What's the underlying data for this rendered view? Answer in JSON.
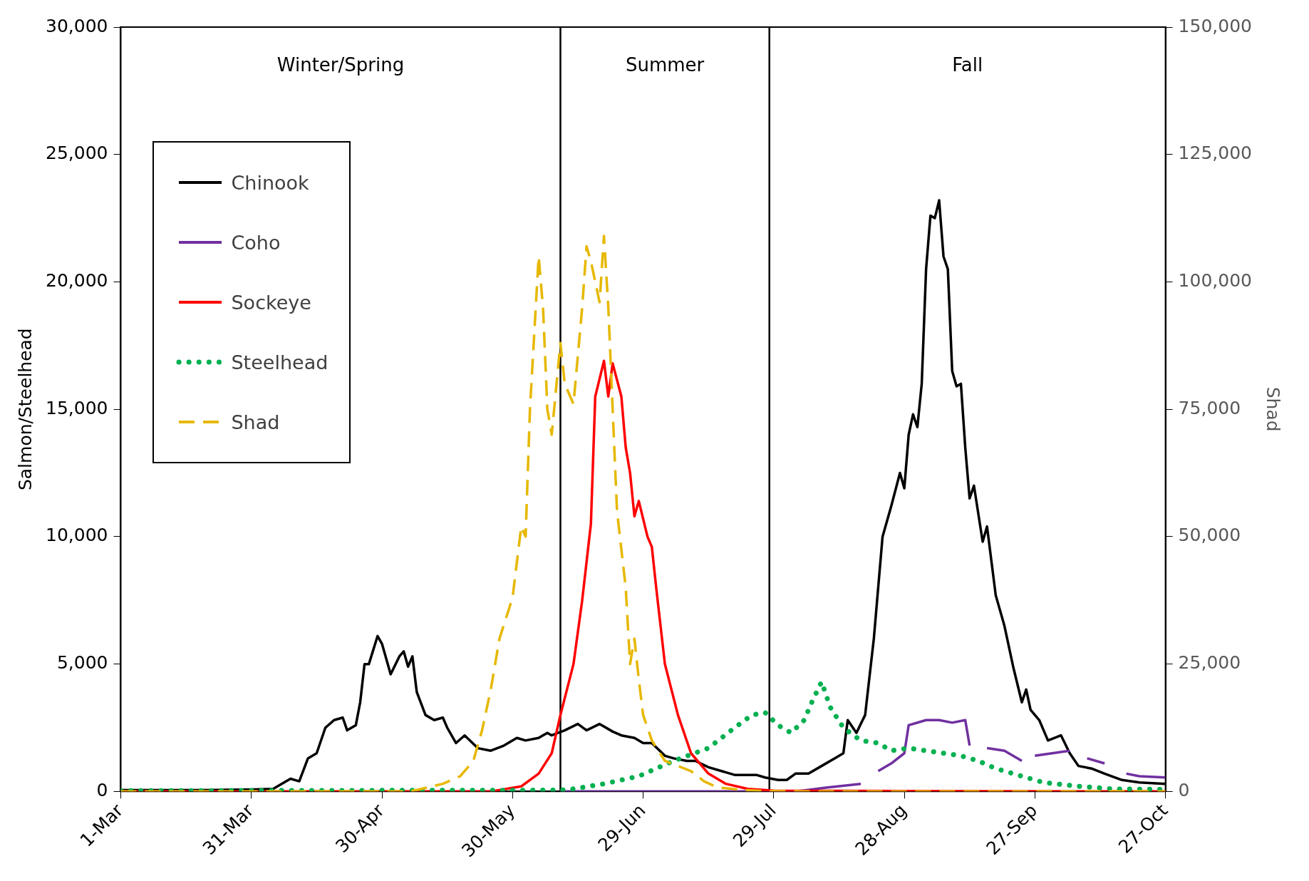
{
  "chart_data": {
    "type": "line",
    "ylabel": "Salmon/Steelhead",
    "y2label": "Shad",
    "xlim": [
      "--03-01",
      "--10-27"
    ],
    "xticks": [
      {
        "value": "--03-01",
        "label": "1-Mar"
      },
      {
        "value": "--03-31",
        "label": "31-Mar"
      },
      {
        "value": "--04-30",
        "label": "30-Apr"
      },
      {
        "value": "--05-30",
        "label": "30-May"
      },
      {
        "value": "--06-29",
        "label": "29-Jun"
      },
      {
        "value": "--07-29",
        "label": "29-Jul"
      },
      {
        "value": "--08-28",
        "label": "28-Aug"
      },
      {
        "value": "--09-27",
        "label": "27-Sep"
      },
      {
        "value": "--10-27",
        "label": "27-Oct"
      }
    ],
    "ylim": [
      0,
      30000
    ],
    "yticks": [
      0,
      {
        "value": 5000,
        "label": "5,000"
      },
      {
        "value": 10000,
        "label": "10,000"
      },
      {
        "value": 15000,
        "label": "15,000"
      },
      {
        "value": 20000,
        "label": "20,000"
      },
      {
        "value": 25000,
        "label": "25,000"
      },
      {
        "value": 30000,
        "label": "30,000"
      }
    ],
    "y2lim": [
      0,
      150000
    ],
    "y2ticks": [
      0,
      {
        "value": 25000,
        "label": "25,000"
      },
      {
        "value": 50000,
        "label": "50,000"
      },
      {
        "value": 75000,
        "label": "75,000"
      },
      {
        "value": 100000,
        "label": "100,000"
      },
      {
        "value": 125000,
        "label": "125,000"
      },
      {
        "value": 150000,
        "label": "150,000"
      }
    ],
    "grid": false,
    "legend": "top left",
    "marker": "none",
    "ref_lines": [
      {
        "axis": "x",
        "value": "--06-10",
        "color": "#000000"
      },
      {
        "axis": "x",
        "value": "--07-28",
        "color": "#000000"
      }
    ],
    "annotations": [
      "Winter/Spring",
      "Summer",
      "Fall"
    ],
    "series": [
      {
        "name": "Chinook",
        "color": "#000000",
        "line_style": "solid",
        "x": [
          "--03-01",
          "--03-20",
          "--04-01",
          "--04-05",
          "--04-09",
          "--04-11",
          "--04-13",
          "--04-15",
          "--04-17",
          "--04-19",
          "--04-21",
          "--04-22",
          "--04-24",
          "--04-25",
          "--04-26",
          "--04-27",
          "--04-29",
          "--04-30",
          "--05-02",
          "--05-04",
          "--05-05",
          "--05-06",
          "--05-07",
          "--05-08",
          "--05-10",
          "--05-12",
          "--05-14",
          "--05-15",
          "--05-17",
          "--05-19",
          "--05-22",
          "--05-25",
          "--05-28",
          "--05-31",
          "--06-02",
          "--06-05",
          "--06-07",
          "--06-08",
          "--06-11",
          "--06-14",
          "--06-16",
          "--06-19",
          "--06-22",
          "--06-24",
          "--06-27",
          "--06-29",
          "--07-01",
          "--07-04",
          "--07-06",
          "--07-09",
          "--07-11",
          "--07-14",
          "--07-17",
          "--07-20",
          "--07-23",
          "--07-25",
          "--07-27",
          "--07-30",
          "--08-01",
          "--08-03",
          "--08-06",
          "--08-09",
          "--08-12",
          "--08-14",
          "--08-15",
          "--08-17",
          "--08-19",
          "--08-20",
          "--08-21",
          "--08-23",
          "--08-25",
          "--08-27",
          "--08-28",
          "--08-29",
          "--08-30",
          "--08-31",
          "--09-01",
          "--09-02",
          "--09-03",
          "--09-04",
          "--09-05",
          "--09-06",
          "--09-07",
          "--09-08",
          "--09-09",
          "--09-10",
          "--09-11",
          "--09-12",
          "--09-13",
          "--09-15",
          "--09-16",
          "--09-18",
          "--09-20",
          "--09-22",
          "--09-24",
          "--09-25",
          "--09-26",
          "--09-28",
          "--09-30",
          "--10-03",
          "--10-05",
          "--10-07",
          "--10-10",
          "--10-13",
          "--10-17",
          "--10-21",
          "--10-27"
        ],
        "values": [
          50,
          50,
          80,
          100,
          500,
          400,
          1300,
          1500,
          2500,
          2800,
          2900,
          2400,
          2600,
          3500,
          5000,
          5000,
          6100,
          5800,
          4600,
          5300,
          5500,
          4900,
          5300,
          3900,
          3000,
          2800,
          2900,
          2500,
          1900,
          2200,
          1700,
          1600,
          1800,
          2100,
          2000,
          2100,
          2300,
          2200,
          2400,
          2650,
          2400,
          2650,
          2350,
          2200,
          2100,
          1900,
          1900,
          1400,
          1300,
          1200,
          1200,
          950,
          800,
          650,
          650,
          650,
          550,
          450,
          450,
          700,
          700,
          1000,
          1300,
          1500,
          2800,
          2300,
          3000,
          4500,
          6000,
          10000,
          11200,
          12500,
          11900,
          14000,
          14800,
          14300,
          16000,
          20500,
          22600,
          22500,
          23200,
          21000,
          20500,
          16500,
          15900,
          16000,
          13500,
          11500,
          12000,
          9800,
          10400,
          7700,
          6500,
          4900,
          3500,
          4000,
          3200,
          2800,
          2000,
          2200,
          1500,
          1000,
          900,
          700,
          450,
          350,
          300
        ]
      },
      {
        "name": "Coho",
        "color": "#7030a0",
        "line_style": "solid",
        "x": [
          "--06-10",
          "--08-03",
          "--08-10",
          "--08-18",
          "--08-19",
          "--08-22",
          "--08-25",
          "--08-28",
          "--08-29",
          "--09-02",
          "--09-05",
          "--09-08",
          "--09-11",
          "--09-12",
          "--09-14",
          "--09-16",
          "--09-20",
          "--09-24",
          "--09-25",
          "--09-27",
          "--10-01",
          "--10-05",
          "--10-06",
          "--10-09",
          "--10-13",
          "--10-15",
          "--10-18",
          "--10-21",
          "--10-27"
        ],
        "values": [
          0,
          0,
          150,
          300,
          null,
          800,
          1100,
          1500,
          2600,
          2800,
          2800,
          2700,
          2800,
          1800,
          null,
          1700,
          1600,
          1200,
          null,
          1400,
          1500,
          1600,
          null,
          1300,
          1100,
          null,
          700,
          600,
          550
        ]
      },
      {
        "name": "Sockeye",
        "color": "#ff0000",
        "line_style": "solid",
        "x": [
          "--03-01",
          "--05-25",
          "--06-01",
          "--06-05",
          "--06-08",
          "--06-10",
          "--06-13",
          "--06-15",
          "--06-17",
          "--06-18",
          "--06-20",
          "--06-21",
          "--06-22",
          "--06-24",
          "--06-25",
          "--06-26",
          "--06-27",
          "--06-28",
          "--06-30",
          "--07-01",
          "--07-02",
          "--07-04",
          "--07-07",
          "--07-10",
          "--07-14",
          "--07-18",
          "--07-23",
          "--07-29",
          "--10-27"
        ],
        "values": [
          0,
          0,
          200,
          700,
          1500,
          3000,
          5000,
          7500,
          10500,
          15500,
          16900,
          15500,
          16800,
          15500,
          13500,
          12500,
          10800,
          11400,
          10000,
          9600,
          8000,
          5000,
          3000,
          1500,
          700,
          300,
          100,
          30,
          0
        ]
      },
      {
        "name": "Steelhead",
        "color": "#00b050",
        "line_style": "dotted",
        "x": [
          "--03-01",
          "--06-10",
          "--06-13",
          "--06-20",
          "--06-28",
          "--07-06",
          "--07-14",
          "--07-20",
          "--07-24",
          "--07-27",
          "--07-30",
          "--08-02",
          "--08-05",
          "--08-07",
          "--08-09",
          "--08-11",
          "--08-14",
          "--08-18",
          "--08-22",
          "--08-25",
          "--08-29",
          "--09-02",
          "--09-06",
          "--09-10",
          "--09-14",
          "--09-18",
          "--09-24",
          "--09-29",
          "--10-07",
          "--10-15",
          "--10-27"
        ],
        "values": [
          30,
          50,
          100,
          300,
          600,
          1200,
          1700,
          2500,
          3000,
          3100,
          2600,
          2300,
          2800,
          3600,
          4300,
          3300,
          2500,
          2000,
          1900,
          1600,
          1700,
          1600,
          1500,
          1400,
          1200,
          900,
          600,
          350,
          200,
          100,
          80
        ]
      },
      {
        "name": "Shad",
        "color": "#e6b800",
        "line_style": "dashed",
        "axis": "y2",
        "x": [
          "--03-01",
          "--05-06",
          "--05-08",
          "--05-14",
          "--05-18",
          "--05-21",
          "--05-23",
          "--05-25",
          "--05-27",
          "--05-30",
          "--06-01",
          "--06-02",
          "--06-03",
          "--06-05",
          "--06-06",
          "--06-07",
          "--06-08",
          "--06-10",
          "--06-11",
          "--06-13",
          "--06-15",
          "--06-16",
          "--06-17",
          "--06-19",
          "--06-20",
          "--06-21",
          "--06-22",
          "--06-23",
          "--06-25",
          "--06-26",
          "--06-27",
          "--06-28",
          "--06-29",
          "--07-01",
          "--07-04",
          "--07-07",
          "--07-10",
          "--07-13",
          "--07-16",
          "--07-22",
          "--07-27",
          "--08-10",
          "--10-27"
        ],
        "values": [
          0,
          0,
          300,
          1500,
          3000,
          6000,
          12000,
          20000,
          30000,
          38000,
          52000,
          50000,
          75000,
          105000,
          95000,
          75000,
          70000,
          88000,
          80000,
          76000,
          95000,
          107000,
          104000,
          96000,
          109000,
          95000,
          75000,
          55000,
          40000,
          25000,
          30000,
          22000,
          15000,
          10000,
          6000,
          5000,
          4000,
          2000,
          800,
          300,
          100,
          0,
          0
        ]
      }
    ]
  }
}
